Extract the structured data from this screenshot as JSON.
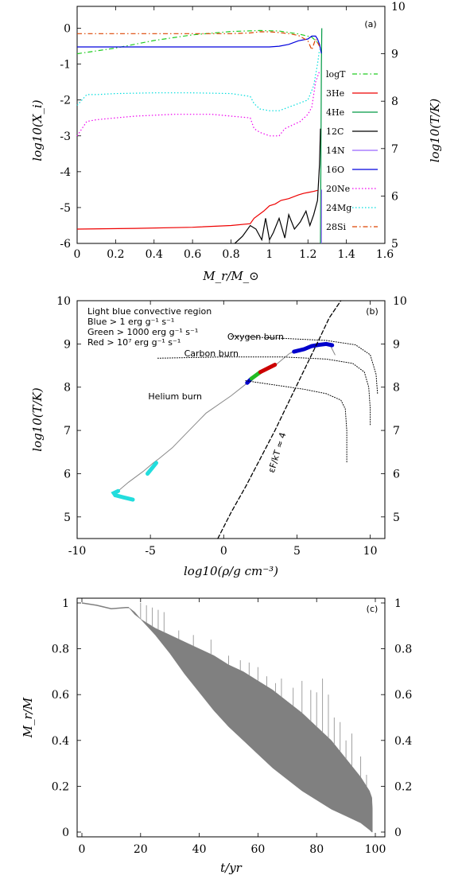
{
  "chart_data": [
    {
      "type": "line",
      "panel_label": "(a)",
      "xlabel": "M_r/M_⊙",
      "ylabel_left": "log10(X_i)",
      "ylabel_right": "log10(T/K)",
      "xlim": [
        0,
        1.6
      ],
      "ylim": [
        -6,
        0.3
      ],
      "ylim_right": [
        5,
        10
      ],
      "x_ticks": [
        "0",
        "0.2",
        "0.4",
        "0.6",
        "0.8",
        "1",
        "1.2",
        "1.4",
        "1.6"
      ],
      "y_ticks": [
        "-6",
        "-5",
        "-4",
        "-3",
        "-2",
        "-1",
        "0"
      ],
      "y_ticks_right": [
        "5",
        "6",
        "7",
        "8",
        "9",
        "10"
      ],
      "legend_placement": "right",
      "series": [
        {
          "name": "logT",
          "color": "#22cc22",
          "dash": "dashdot",
          "axis": "right",
          "x": [
            0,
            0.2,
            0.4,
            0.6,
            0.8,
            0.95,
            1.05,
            1.15,
            1.22,
            1.26
          ],
          "y": [
            9.0,
            9.12,
            9.28,
            9.4,
            9.47,
            9.49,
            9.48,
            9.42,
            9.35,
            9.2
          ]
        },
        {
          "name": "3He",
          "color": "#ee0000",
          "dash": "solid",
          "axis": "left",
          "x": [
            0,
            0.3,
            0.6,
            0.8,
            0.9,
            0.92,
            0.97,
            1.0,
            1.03,
            1.06,
            1.1,
            1.15,
            1.18,
            1.2,
            1.23,
            1.25
          ],
          "y": [
            -5.6,
            -5.58,
            -5.55,
            -5.5,
            -5.45,
            -5.3,
            -5.1,
            -4.95,
            -4.9,
            -4.8,
            -4.75,
            -4.65,
            -4.6,
            -4.58,
            -4.55,
            -4.52
          ]
        },
        {
          "name": "4He",
          "color": "#009944",
          "dash": "solid",
          "axis": "left",
          "x": [
            1.265,
            1.268,
            1.27,
            1.272
          ],
          "y": [
            -6,
            -3,
            -1,
            0
          ]
        },
        {
          "name": "12C",
          "color": "#000000",
          "dash": "solid",
          "axis": "left",
          "x": [
            0.82,
            0.86,
            0.9,
            0.93,
            0.96,
            0.98,
            1.0,
            1.02,
            1.05,
            1.08,
            1.1,
            1.13,
            1.16,
            1.19,
            1.21,
            1.23,
            1.25,
            1.26,
            1.265
          ],
          "y": [
            -6.0,
            -5.8,
            -5.5,
            -5.6,
            -5.9,
            -5.3,
            -5.9,
            -5.7,
            -5.3,
            -5.85,
            -5.2,
            -5.6,
            -5.4,
            -5.1,
            -5.5,
            -5.2,
            -4.8,
            -3.8,
            -2.8
          ]
        },
        {
          "name": "14N",
          "color": "#9966ff",
          "dash": "solid",
          "axis": "left",
          "x": [
            1.27,
            1.271
          ],
          "y": [
            -6,
            -4.5
          ]
        },
        {
          "name": "16O",
          "color": "#0000dd",
          "dash": "solid",
          "axis": "left",
          "x": [
            0,
            0.2,
            0.4,
            0.6,
            0.8,
            0.95,
            1.0,
            1.05,
            1.1,
            1.15,
            1.2,
            1.22,
            1.24,
            1.25,
            1.26,
            1.27
          ],
          "y": [
            -0.52,
            -0.52,
            -0.52,
            -0.52,
            -0.52,
            -0.52,
            -0.52,
            -0.5,
            -0.45,
            -0.35,
            -0.3,
            -0.22,
            -0.22,
            -0.3,
            -0.45,
            -0.7
          ]
        },
        {
          "name": "20Ne",
          "color": "#ee00ee",
          "dash": "dotted",
          "axis": "left",
          "x": [
            0,
            0.05,
            0.1,
            0.2,
            0.3,
            0.5,
            0.7,
            0.9,
            0.92,
            0.95,
            1.0,
            1.05,
            1.08,
            1.12,
            1.16,
            1.2,
            1.22,
            1.24,
            1.26
          ],
          "y": [
            -3.0,
            -2.6,
            -2.55,
            -2.5,
            -2.45,
            -2.4,
            -2.4,
            -2.5,
            -2.8,
            -2.9,
            -3.0,
            -3.0,
            -2.8,
            -2.7,
            -2.6,
            -2.4,
            -2.2,
            -1.5,
            -1.2
          ]
        },
        {
          "name": "24Mg",
          "color": "#00dddd",
          "dash": "dotted",
          "axis": "left",
          "x": [
            0,
            0.05,
            0.1,
            0.2,
            0.4,
            0.6,
            0.8,
            0.9,
            0.92,
            0.95,
            1.0,
            1.05,
            1.1,
            1.15,
            1.2,
            1.23,
            1.25,
            1.26
          ],
          "y": [
            -2.15,
            -1.85,
            -1.85,
            -1.82,
            -1.8,
            -1.8,
            -1.82,
            -1.9,
            -2.1,
            -2.25,
            -2.3,
            -2.3,
            -2.2,
            -2.1,
            -2.0,
            -1.6,
            -1.0,
            -0.6
          ]
        },
        {
          "name": "28Si",
          "color": "#dd4400",
          "dash": "dashdot",
          "axis": "left",
          "x": [
            0,
            0.2,
            0.4,
            0.6,
            0.8,
            0.9,
            0.95,
            1.0,
            1.05,
            1.1,
            1.15,
            1.2,
            1.22,
            1.24,
            1.26
          ],
          "y": [
            -0.15,
            -0.15,
            -0.15,
            -0.15,
            -0.15,
            -0.13,
            -0.1,
            -0.1,
            -0.12,
            -0.15,
            -0.2,
            -0.35,
            -0.6,
            -0.3,
            -0.5
          ]
        }
      ]
    },
    {
      "type": "line",
      "panel_label": "(b)",
      "xlabel": "log10(ρ/g cm⁻³)",
      "ylabel_left": "log10(T/K)",
      "xlim": [
        -10,
        11
      ],
      "ylim": [
        4.5,
        10
      ],
      "ylim_right": [
        4.5,
        10
      ],
      "x_ticks": [
        "-10",
        "-5",
        "0",
        "5",
        "10"
      ],
      "y_ticks": [
        "5",
        "6",
        "7",
        "8",
        "9",
        "10"
      ],
      "y_ticks_right": [
        "5",
        "6",
        "7",
        "8",
        "9",
        "10"
      ],
      "legend_lines": [
        "Light blue convective region",
        "Blue > 1 erg g⁻¹ s⁻¹",
        "Green > 1000 erg g⁻¹ s⁻¹",
        "Red > 10⁷ erg g⁻¹ s⁻¹"
      ],
      "curve_annotation": "εF/kT ≈ 4",
      "burn_labels": [
        "Oxygen burn",
        "Carbon burn",
        "Helium burn"
      ],
      "series": [
        {
          "name": "profile",
          "color": "#888888",
          "style": "solid",
          "x": [
            -6.2,
            -6.8,
            -7.4,
            -7.5,
            -7.2,
            -6.5,
            -5.5,
            -4.8,
            -4.4,
            -3.5,
            -2.5,
            -1.2,
            0.5,
            1.7,
            2.3,
            3.0,
            3.5,
            4.5,
            5.0,
            5.8,
            6.5,
            7.0,
            7.3,
            7.6
          ],
          "y": [
            5.4,
            5.45,
            5.5,
            5.55,
            5.6,
            5.8,
            6.05,
            6.25,
            6.35,
            6.6,
            6.95,
            7.4,
            7.8,
            8.12,
            8.3,
            8.45,
            8.5,
            8.78,
            8.85,
            8.92,
            8.98,
            8.97,
            8.95,
            8.75
          ]
        },
        {
          "name": "convective",
          "color": "#22dddd",
          "style": "thick",
          "x": [
            -6.2,
            -6.8,
            -7.4,
            -7.5,
            -7.2
          ],
          "y": [
            5.4,
            5.45,
            5.5,
            5.55,
            5.6
          ]
        },
        {
          "name": "convective2",
          "color": "#22dddd",
          "style": "thick",
          "x": [
            -5.2,
            -4.6
          ],
          "y": [
            6.0,
            6.25
          ]
        },
        {
          "name": "he-blue",
          "color": "#0000cc",
          "style": "thick",
          "x": [
            1.6,
            1.9
          ],
          "y": [
            8.1,
            8.2
          ]
        },
        {
          "name": "he-green",
          "color": "#22bb22",
          "style": "thick",
          "x": [
            1.9,
            2.5
          ],
          "y": [
            8.2,
            8.35
          ]
        },
        {
          "name": "he-red",
          "color": "#cc0000",
          "style": "thick",
          "x": [
            2.5,
            3.5
          ],
          "y": [
            8.35,
            8.52
          ]
        },
        {
          "name": "o-blue",
          "color": "#0000cc",
          "style": "thick",
          "x": [
            4.8,
            5.5,
            6.0,
            6.5,
            7.0,
            7.4
          ],
          "y": [
            8.82,
            8.88,
            8.95,
            8.98,
            9.0,
            8.97
          ]
        },
        {
          "name": "he-track",
          "color": "#000000",
          "style": "dotted",
          "x": [
            1.5,
            3.5,
            5.5,
            7.0,
            8.0,
            8.3,
            8.4,
            8.4
          ],
          "y": [
            8.15,
            8.05,
            7.95,
            7.85,
            7.7,
            7.5,
            7.0,
            6.25
          ]
        },
        {
          "name": "c-track",
          "color": "#000000",
          "style": "dotted",
          "x": [
            -4.5,
            0.0,
            4.0,
            7.0,
            8.8,
            9.6,
            9.9,
            10.0,
            10.0
          ],
          "y": [
            8.67,
            8.7,
            8.7,
            8.65,
            8.55,
            8.35,
            8.0,
            7.5,
            7.1
          ]
        },
        {
          "name": "o-track",
          "color": "#000000",
          "style": "dotted",
          "x": [
            0.5,
            4.0,
            7.0,
            9.0,
            10.0,
            10.4,
            10.5
          ],
          "y": [
            9.18,
            9.13,
            9.08,
            8.98,
            8.75,
            8.3,
            7.85
          ]
        },
        {
          "name": "fermi",
          "color": "#000000",
          "style": "dashed",
          "x": [
            -0.4,
            0.5,
            1.5,
            2.5,
            3.5,
            4.5,
            5.5,
            6.5,
            7.2,
            8.0
          ],
          "y": [
            4.5,
            5.1,
            5.7,
            6.35,
            7.0,
            7.7,
            8.4,
            9.1,
            9.6,
            10.0
          ]
        }
      ]
    },
    {
      "type": "area",
      "panel_label": "(c)",
      "xlabel": "t/yr",
      "ylabel_left": "M_r/M",
      "xlim": [
        0,
        100
      ],
      "ylim": [
        0,
        1
      ],
      "x_ticks": [
        "0",
        "20",
        "40",
        "60",
        "80",
        "100"
      ],
      "y_ticks": [
        "0",
        "0.2",
        "0.4",
        "0.6",
        "0.8",
        "1"
      ],
      "y_ticks_right": [
        "0",
        "0.2",
        "0.4",
        "0.6",
        "0.8",
        "1"
      ],
      "fill_color": "#808080",
      "series": [
        {
          "name": "upper",
          "x": [
            16,
            18,
            20,
            25,
            30,
            35,
            40,
            45,
            50,
            55,
            60,
            65,
            70,
            75,
            80,
            85,
            90,
            95,
            97,
            98,
            98.8,
            99
          ],
          "y": [
            0.98,
            0.95,
            0.93,
            0.89,
            0.86,
            0.83,
            0.8,
            0.77,
            0.73,
            0.7,
            0.66,
            0.62,
            0.57,
            0.52,
            0.46,
            0.4,
            0.32,
            0.24,
            0.2,
            0.18,
            0.15,
            0.1
          ]
        },
        {
          "name": "lower",
          "x": [
            16,
            18,
            20,
            25,
            30,
            35,
            40,
            45,
            50,
            55,
            60,
            65,
            70,
            75,
            80,
            85,
            90,
            95,
            97,
            98,
            98.8,
            99
          ],
          "y": [
            0.98,
            0.96,
            0.93,
            0.86,
            0.78,
            0.69,
            0.61,
            0.53,
            0.46,
            0.4,
            0.34,
            0.28,
            0.23,
            0.18,
            0.14,
            0.1,
            0.07,
            0.04,
            0.02,
            0.01,
            0.0,
            0.0
          ]
        },
        {
          "name": "early",
          "x": [
            0,
            5,
            10,
            15,
            16
          ],
          "y": [
            1.0,
            0.99,
            0.975,
            0.98,
            0.98
          ]
        }
      ]
    }
  ]
}
